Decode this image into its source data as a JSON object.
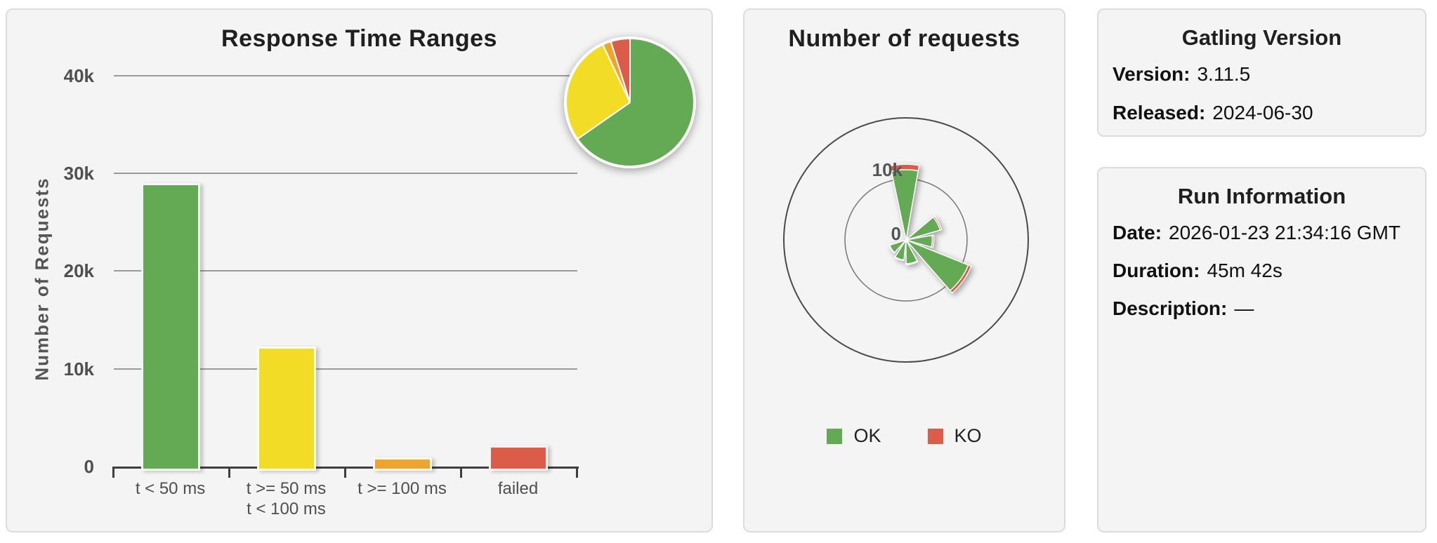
{
  "page": {
    "background": "#ffffff"
  },
  "styles": {
    "panel_bg": "#f4f4f4",
    "panel_border": "#dcdcdc",
    "grid_color": "#9a9a9a",
    "axis_color": "#3f3f3f",
    "tick_text_color": "#4f4f4f",
    "title_color": "#1f1f1f",
    "ok_green": "#64a953",
    "ko_red": "#db5c48",
    "yellow": "#f2dc26",
    "orange": "#efa42e"
  },
  "panels": {
    "gatling_version": {
      "title": "Gatling Version",
      "rows": [
        {
          "label": "Version:",
          "value": "3.11.5"
        },
        {
          "label": "Released:",
          "value": "2024-06-30"
        }
      ]
    },
    "run_information": {
      "title": "Run Information",
      "rows": [
        {
          "label": "Date:",
          "value": "2026-01-23 21:34:16 GMT"
        },
        {
          "label": "Duration:",
          "value": "45m 42s"
        },
        {
          "label": "Description:",
          "value": "—"
        }
      ]
    }
  },
  "chart_data": [
    {
      "type": "bar",
      "title": "Response Time Ranges",
      "xlabel": "",
      "ylabel": "Number of Requests",
      "categories": [
        "t < 50 ms",
        "t >= 50 ms\nt < 100 ms",
        "t >= 100 ms",
        "failed"
      ],
      "values": [
        29000,
        12300,
        950,
        2150
      ],
      "colors": [
        "#64a953",
        "#f2dc26",
        "#efa42e",
        "#db5c48"
      ],
      "ylim": [
        0,
        44000
      ],
      "yticks": [
        0,
        10000,
        20000,
        30000,
        40000
      ],
      "ytick_labels": [
        "0",
        "10k",
        "20k",
        "30k",
        "40k"
      ],
      "grid": true,
      "legend_position": "none"
    },
    {
      "type": "pie",
      "title": "",
      "labels": [
        "t < 50 ms",
        "t >= 50 ms, t < 100 ms",
        "t >= 100 ms",
        "failed"
      ],
      "values": [
        29000,
        12300,
        950,
        2150
      ],
      "colors": [
        "#64a953",
        "#f2dc26",
        "#efa42e",
        "#db5c48"
      ],
      "start_angle_deg": 0,
      "direction": "clockwise",
      "layout_hint": "inset at top-right of the Response Time Ranges panel"
    },
    {
      "type": "polar-rose",
      "title": "Number of requests",
      "center_label": "0",
      "rings": [
        {
          "value": 10000,
          "label": "10k"
        },
        {
          "value": 20000,
          "label": ""
        }
      ],
      "series": [
        {
          "name": "OK",
          "color": "#64a953"
        },
        {
          "name": "KO",
          "color": "#db5c48"
        }
      ],
      "wedges": [
        {
          "start_deg": -12,
          "end_deg": 10,
          "ok": 11500,
          "ko": 900
        },
        {
          "start_deg": 50,
          "end_deg": 74,
          "ok": 5800,
          "ko": 250
        },
        {
          "start_deg": 80,
          "end_deg": 106,
          "ok": 4300,
          "ko": 250
        },
        {
          "start_deg": 112,
          "end_deg": 139,
          "ok": 11000,
          "ko": 500
        },
        {
          "start_deg": 152,
          "end_deg": 180,
          "ok": 3900,
          "ko": 150
        },
        {
          "start_deg": 186,
          "end_deg": 213,
          "ok": 3300,
          "ko": 100
        },
        {
          "start_deg": 222,
          "end_deg": 252,
          "ok": 2800,
          "ko": 100
        }
      ],
      "legend": [
        {
          "label": "OK",
          "color": "#64a953"
        },
        {
          "label": "KO",
          "color": "#db5c48"
        }
      ],
      "legend_position": "bottom"
    }
  ]
}
